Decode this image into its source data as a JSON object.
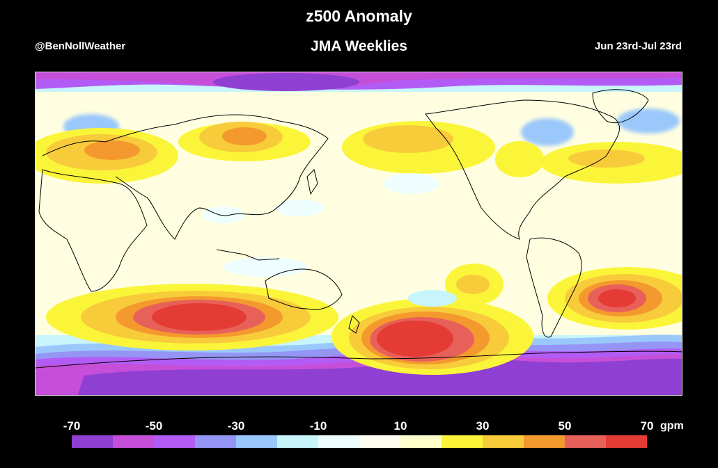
{
  "header": {
    "title": "z500 Anomaly",
    "subtitle": "JMA Weeklies",
    "credit": "@BenNollWeather",
    "date_range": "Jun 23rd-Jul 23rd"
  },
  "colorbar": {
    "unit": "gpm",
    "tick_labels": [
      "-70",
      "-50",
      "-30",
      "-10",
      "10",
      "30",
      "50",
      "70"
    ],
    "colors": [
      "#8f3fd2",
      "#c64fd9",
      "#b35cf5",
      "#9595f5",
      "#9ac8fb",
      "#c7f5fb",
      "#eefdfd",
      "#fffef0",
      "#ffffcc",
      "#fbf53a",
      "#f8cb3a",
      "#f4992e",
      "#e8605a",
      "#e53b35"
    ]
  },
  "map": {
    "projection": "equirectangular, Pacific-centered",
    "regions": [
      {
        "name": "north-pacific-ridge",
        "level": "30-40"
      },
      {
        "name": "south-pacific-high",
        "level": "70"
      },
      {
        "name": "south-indian-ocean-high",
        "level": "70"
      },
      {
        "name": "south-atlantic-high",
        "level": "70"
      },
      {
        "name": "east-asia-ridge",
        "level": "50"
      },
      {
        "name": "europe-ridge",
        "level": "40"
      },
      {
        "name": "hudson-bay-trough",
        "level": "-30"
      },
      {
        "name": "antarctic-trough",
        "level": "-70"
      },
      {
        "name": "arctic-trough",
        "level": "-70"
      }
    ]
  }
}
